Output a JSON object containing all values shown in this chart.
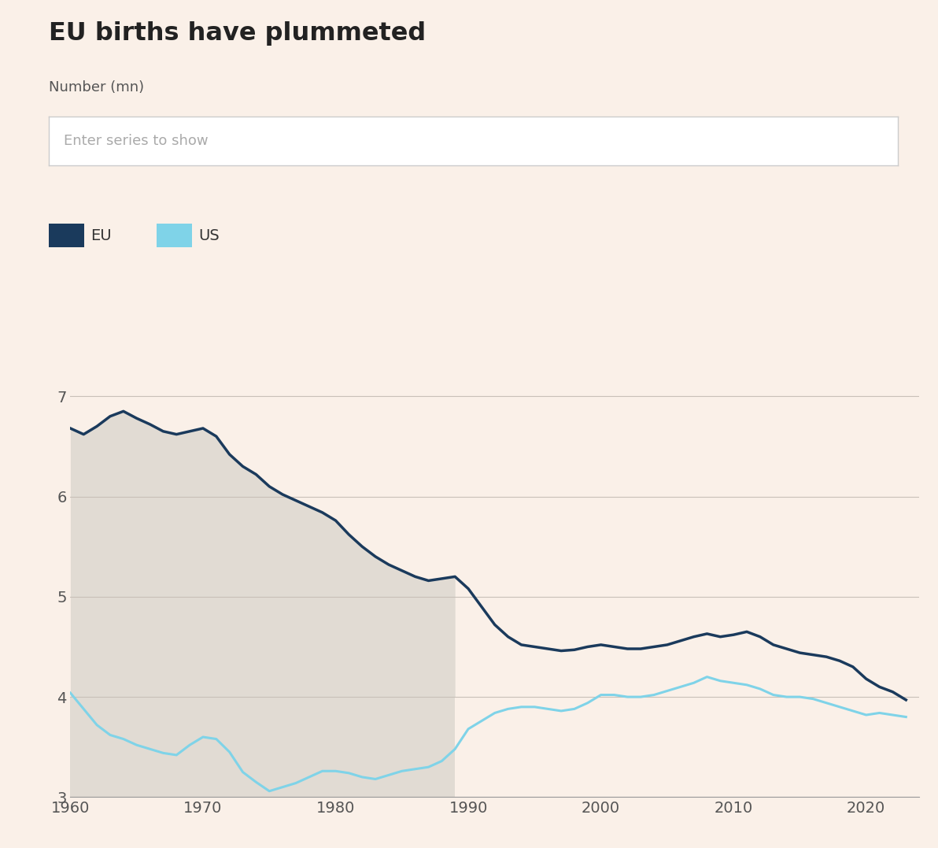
{
  "title": "EU births have plummeted",
  "ylabel": "Number (mn)",
  "background_color": "#faf0e8",
  "plot_bg_color": "#faf0e8",
  "search_box_color": "#ffffff",
  "search_box_text": "Enter series to show",
  "legend_eu": "EU",
  "legend_us": "US",
  "eu_color": "#1a3a5c",
  "us_color": "#7fd3e8",
  "shade_color": "#ddd8d0",
  "shade_alpha": 0.85,
  "shade_baseline": 4.0,
  "shade_xmax": 1989,
  "ylim": [
    3.0,
    7.4
  ],
  "yticks": [
    3,
    4,
    5,
    6,
    7
  ],
  "xlim": [
    1960,
    2024
  ],
  "xticks": [
    1960,
    1970,
    1980,
    1990,
    2000,
    2010,
    2020
  ],
  "eu_years": [
    1960,
    1961,
    1962,
    1963,
    1964,
    1965,
    1966,
    1967,
    1968,
    1969,
    1970,
    1971,
    1972,
    1973,
    1974,
    1975,
    1976,
    1977,
    1978,
    1979,
    1980,
    1981,
    1982,
    1983,
    1984,
    1985,
    1986,
    1987,
    1988,
    1989,
    1990,
    1991,
    1992,
    1993,
    1994,
    1995,
    1996,
    1997,
    1998,
    1999,
    2000,
    2001,
    2002,
    2003,
    2004,
    2005,
    2006,
    2007,
    2008,
    2009,
    2010,
    2011,
    2012,
    2013,
    2014,
    2015,
    2016,
    2017,
    2018,
    2019,
    2020,
    2021,
    2022,
    2023
  ],
  "eu_values": [
    6.68,
    6.62,
    6.7,
    6.8,
    6.85,
    6.78,
    6.72,
    6.65,
    6.62,
    6.65,
    6.68,
    6.6,
    6.42,
    6.3,
    6.22,
    6.1,
    6.02,
    5.96,
    5.9,
    5.84,
    5.76,
    5.62,
    5.5,
    5.4,
    5.32,
    5.26,
    5.2,
    5.16,
    5.18,
    5.2,
    5.08,
    4.9,
    4.72,
    4.6,
    4.52,
    4.5,
    4.48,
    4.46,
    4.47,
    4.5,
    4.52,
    4.5,
    4.48,
    4.48,
    4.5,
    4.52,
    4.56,
    4.6,
    4.63,
    4.6,
    4.62,
    4.65,
    4.6,
    4.52,
    4.48,
    4.44,
    4.42,
    4.4,
    4.36,
    4.3,
    4.18,
    4.1,
    4.05,
    3.97
  ],
  "us_years": [
    1960,
    1961,
    1962,
    1963,
    1964,
    1965,
    1966,
    1967,
    1968,
    1969,
    1970,
    1971,
    1972,
    1973,
    1974,
    1975,
    1976,
    1977,
    1978,
    1979,
    1980,
    1981,
    1982,
    1983,
    1984,
    1985,
    1986,
    1987,
    1988,
    1989,
    1990,
    1991,
    1992,
    1993,
    1994,
    1995,
    1996,
    1997,
    1998,
    1999,
    2000,
    2001,
    2002,
    2003,
    2004,
    2005,
    2006,
    2007,
    2008,
    2009,
    2010,
    2011,
    2012,
    2013,
    2014,
    2015,
    2016,
    2017,
    2018,
    2019,
    2020,
    2021,
    2022,
    2023
  ],
  "us_values": [
    4.04,
    3.88,
    3.72,
    3.62,
    3.58,
    3.52,
    3.48,
    3.44,
    3.42,
    3.52,
    3.6,
    3.58,
    3.45,
    3.25,
    3.15,
    3.06,
    3.1,
    3.14,
    3.2,
    3.26,
    3.26,
    3.24,
    3.2,
    3.18,
    3.22,
    3.26,
    3.28,
    3.3,
    3.36,
    3.48,
    3.68,
    3.76,
    3.84,
    3.88,
    3.9,
    3.9,
    3.88,
    3.86,
    3.88,
    3.94,
    4.02,
    4.02,
    4.0,
    4.0,
    4.02,
    4.06,
    4.1,
    4.14,
    4.2,
    4.16,
    4.14,
    4.12,
    4.08,
    4.02,
    4.0,
    4.0,
    3.98,
    3.94,
    3.9,
    3.86,
    3.82,
    3.84,
    3.82,
    3.8
  ]
}
